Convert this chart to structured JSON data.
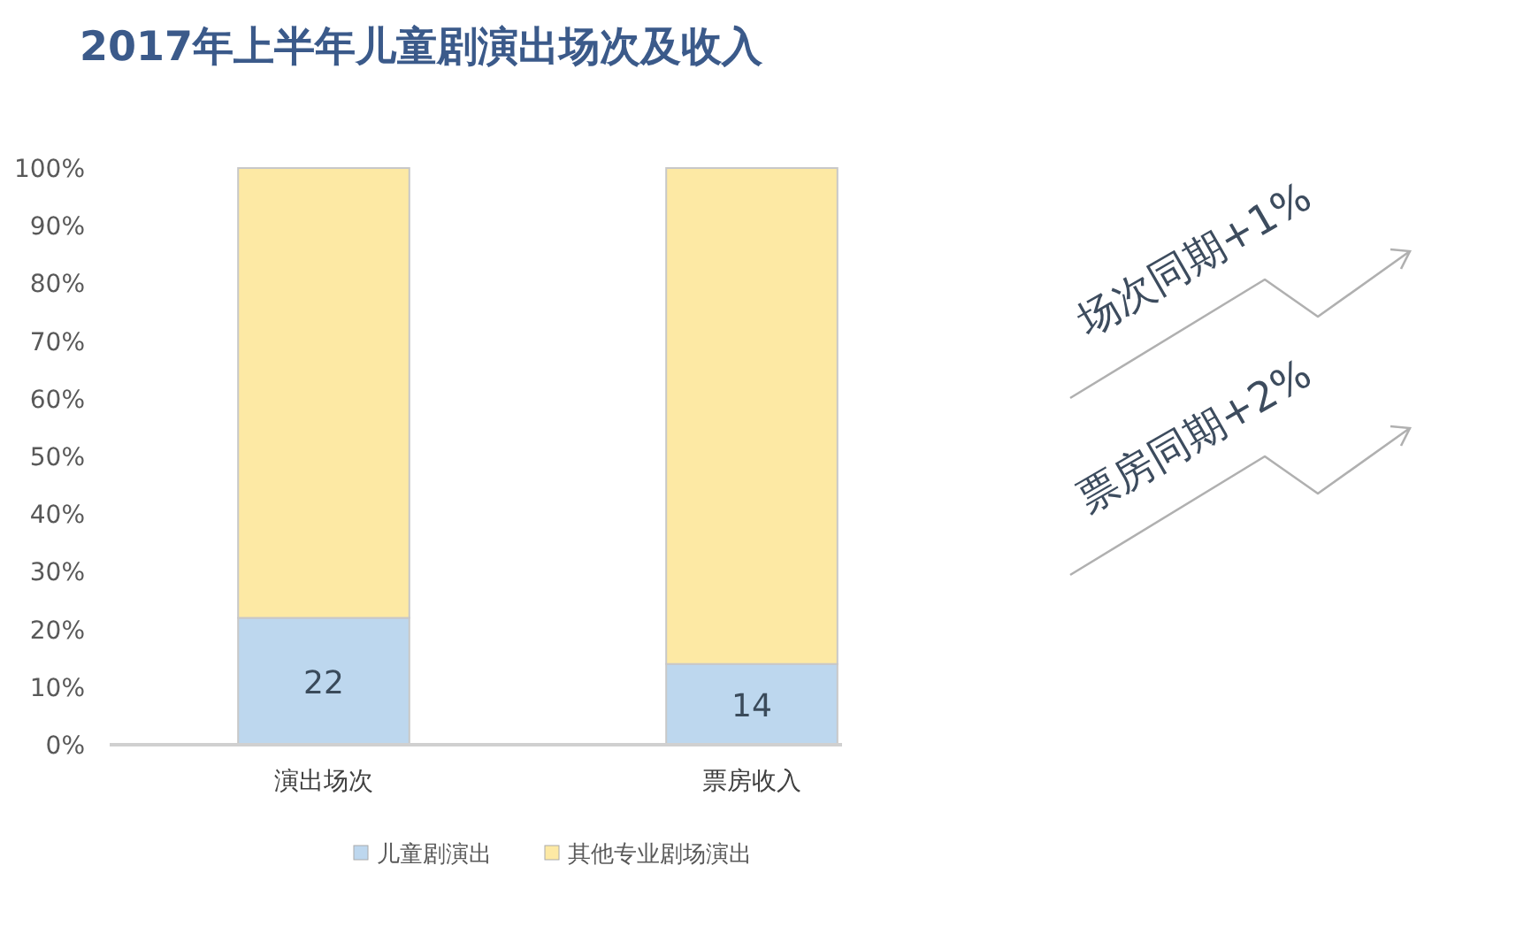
{
  "chart_data": {
    "type": "bar",
    "title": "2017年上半年儿童剧演出场次及收入",
    "categories": [
      "演出场次",
      "票房收入"
    ],
    "stacked": true,
    "series": [
      {
        "name": "儿童剧演出",
        "color": "#bdd7ee",
        "values": [
          22,
          14
        ],
        "value_labels": [
          "22",
          "14"
        ]
      },
      {
        "name": "其他专业剧场演出",
        "color": "#fde9a4",
        "values": [
          78,
          86
        ]
      }
    ],
    "ylim": [
      0,
      100
    ],
    "yticks": [
      {
        "value": 0,
        "label": "0%"
      },
      {
        "value": 10,
        "label": "10%"
      },
      {
        "value": 20,
        "label": "20%"
      },
      {
        "value": 30,
        "label": "30%"
      },
      {
        "value": 40,
        "label": "40%"
      },
      {
        "value": 50,
        "label": "50%"
      },
      {
        "value": 60,
        "label": "60%"
      },
      {
        "value": 70,
        "label": "70%"
      },
      {
        "value": 80,
        "label": "80%"
      },
      {
        "value": 90,
        "label": "90%"
      },
      {
        "value": 100,
        "label": "100%"
      }
    ],
    "legend": "bottom",
    "annotations": [
      "场次同期+1%",
      "票房同期+2%"
    ]
  }
}
